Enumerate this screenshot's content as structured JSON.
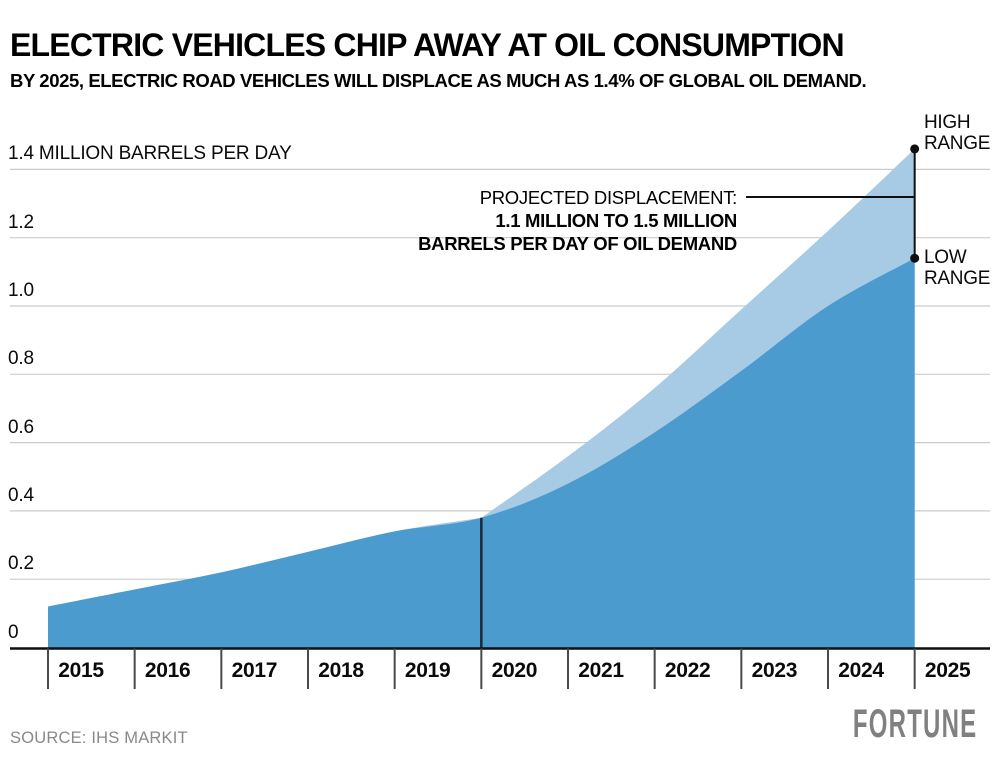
{
  "chart_data": {
    "type": "area",
    "title": "ELECTRIC VEHICLES CHIP AWAY AT OIL CONSUMPTION",
    "subtitle": "BY 2025, ELECTRIC ROAD VEHICLES WILL DISPLACE AS MUCH AS 1.4% OF GLOBAL OIL DEMAND.",
    "units": "million barrels per day",
    "x": [
      2015,
      2016,
      2017,
      2018,
      2019,
      2020,
      2021,
      2022,
      2023,
      2024,
      2025
    ],
    "xtick_labels": [
      "2015",
      "2016",
      "2017",
      "2018",
      "2019",
      "2020",
      "2021",
      "2022",
      "2023",
      "2024",
      "2025"
    ],
    "series": [
      {
        "name": "High range",
        "values": [
          0.12,
          0.17,
          0.22,
          0.28,
          0.34,
          0.38,
          0.56,
          0.76,
          0.99,
          1.22,
          1.46
        ]
      },
      {
        "name": "Low range",
        "values": [
          0.12,
          0.17,
          0.22,
          0.28,
          0.34,
          0.38,
          0.48,
          0.63,
          0.81,
          1.0,
          1.14
        ]
      }
    ],
    "projection_split_year": 2020,
    "ylim": [
      0,
      1.5
    ],
    "yticks": [
      0,
      0.2,
      0.4,
      0.6,
      0.8,
      1.0,
      1.2,
      1.4
    ],
    "ytick_labels": [
      "0",
      "0.2",
      "0.4",
      "0.6",
      "0.8",
      "1.0",
      "1.2",
      "1.4 MILLION BARRELS PER DAY"
    ],
    "grid": true,
    "annotation": {
      "intro": "PROJECTED DISPLACEMENT:",
      "line2": "1.1 MILLION TO 1.5 MILLION",
      "line3": "BARRELS PER DAY OF OIL DEMAND"
    },
    "point_labels": {
      "high": "HIGH RANGE",
      "low": "LOW RANGE"
    }
  },
  "footer": {
    "source": "SOURCE: IHS MARKIT",
    "brand": "FORTUNE"
  },
  "colors": {
    "area_high": "#a7cbe5",
    "area_low": "#4c9bce",
    "grid": "#cbcbcb",
    "axis": "#0f0f0f",
    "tick": "#4a4a4a",
    "divider": "#1b2a36",
    "marker": "#0f0f0f",
    "muted_text": "#88898d",
    "brand_text": "#808080"
  }
}
